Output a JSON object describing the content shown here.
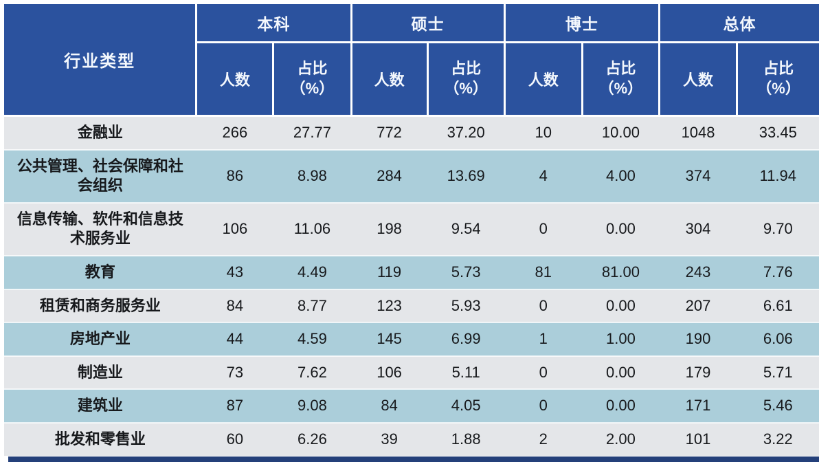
{
  "table": {
    "corner_header": "行业类型",
    "groups": [
      "本科",
      "硕士",
      "博士",
      "总体"
    ],
    "count_label": "人数",
    "percent_label": "占比\n（%）",
    "rows": [
      {
        "industry": "金融业",
        "values": [
          "266",
          "27.77",
          "772",
          "37.20",
          "10",
          "10.00",
          "1048",
          "33.45"
        ]
      },
      {
        "industry": "公共管理、社会保障和社会组织",
        "values": [
          "86",
          "8.98",
          "284",
          "13.69",
          "4",
          "4.00",
          "374",
          "11.94"
        ]
      },
      {
        "industry": "信息传输、软件和信息技术服务业",
        "values": [
          "106",
          "11.06",
          "198",
          "9.54",
          "0",
          "0.00",
          "304",
          "9.70"
        ]
      },
      {
        "industry": "教育",
        "values": [
          "43",
          "4.49",
          "119",
          "5.73",
          "81",
          "81.00",
          "243",
          "7.76"
        ]
      },
      {
        "industry": "租赁和商务服务业",
        "values": [
          "84",
          "8.77",
          "123",
          "5.93",
          "0",
          "0.00",
          "207",
          "6.61"
        ]
      },
      {
        "industry": "房地产业",
        "values": [
          "44",
          "4.59",
          "145",
          "6.99",
          "1",
          "1.00",
          "190",
          "6.06"
        ]
      },
      {
        "industry": "制造业",
        "values": [
          "73",
          "7.62",
          "106",
          "5.11",
          "0",
          "0.00",
          "179",
          "5.71"
        ]
      },
      {
        "industry": "建筑业",
        "values": [
          "87",
          "9.08",
          "84",
          "4.05",
          "0",
          "0.00",
          "171",
          "5.46"
        ]
      },
      {
        "industry": "批发和零售业",
        "values": [
          "60",
          "6.26",
          "39",
          "1.88",
          "2",
          "2.00",
          "101",
          "3.22"
        ]
      }
    ]
  },
  "colors": {
    "header_bg": "#2b529e",
    "header_text": "#f4f8fd",
    "row_even_bg": "#e4e6e9",
    "row_odd_bg": "#abceda",
    "body_text": "#17191c",
    "bottom_bar": "#24407a",
    "cell_divider": "#ffffff"
  },
  "chart_data": {
    "type": "table",
    "title": "",
    "row_header_label": "行业类型",
    "column_groups": [
      "本科",
      "硕士",
      "博士",
      "总体"
    ],
    "columns": [
      "行业类型",
      "本科 人数",
      "本科 占比(%)",
      "硕士 人数",
      "硕士 占比(%)",
      "博士 人数",
      "博士 占比(%)",
      "总体 人数",
      "总体 占比(%)"
    ],
    "rows": [
      [
        "金融业",
        266,
        27.77,
        772,
        37.2,
        10,
        10.0,
        1048,
        33.45
      ],
      [
        "公共管理、社会保障和社会组织",
        86,
        8.98,
        284,
        13.69,
        4,
        4.0,
        374,
        11.94
      ],
      [
        "信息传输、软件和信息技术服务业",
        106,
        11.06,
        198,
        9.54,
        0,
        0.0,
        304,
        9.7
      ],
      [
        "教育",
        43,
        4.49,
        119,
        5.73,
        81,
        81.0,
        243,
        7.76
      ],
      [
        "租赁和商务服务业",
        84,
        8.77,
        123,
        5.93,
        0,
        0.0,
        207,
        6.61
      ],
      [
        "房地产业",
        44,
        4.59,
        145,
        6.99,
        1,
        1.0,
        190,
        6.06
      ],
      [
        "制造业",
        73,
        7.62,
        106,
        5.11,
        0,
        0.0,
        179,
        5.71
      ],
      [
        "建筑业",
        87,
        9.08,
        84,
        4.05,
        0,
        0.0,
        171,
        5.46
      ],
      [
        "批发和零售业",
        60,
        6.26,
        39,
        1.88,
        2,
        2.0,
        101,
        3.22
      ]
    ]
  }
}
